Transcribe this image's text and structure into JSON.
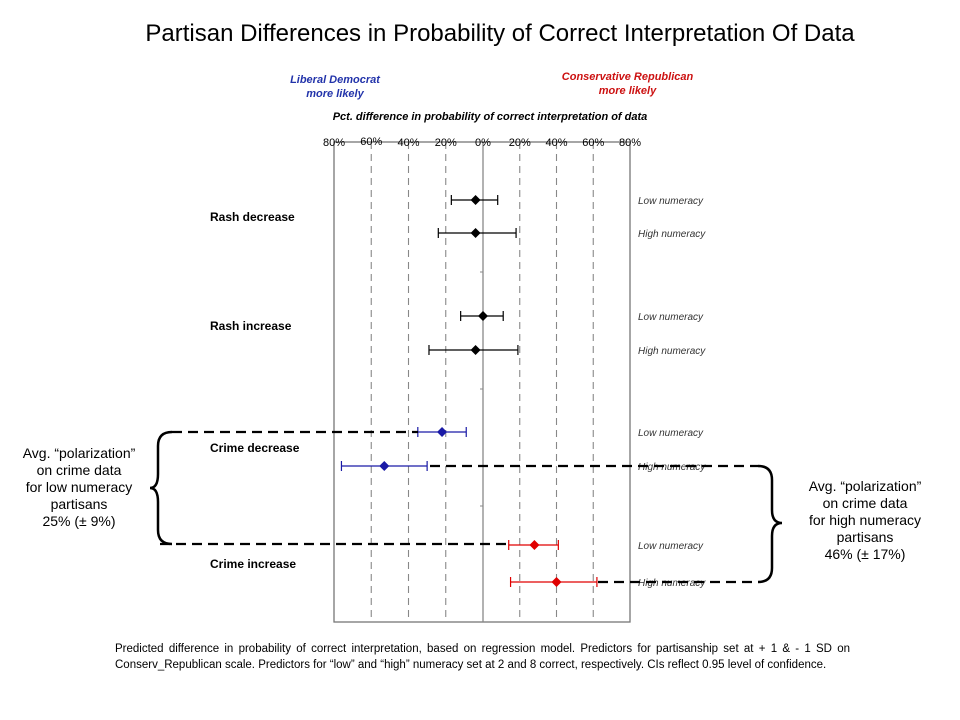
{
  "title": "Partisan Differences in Probability of Correct Interpretation Of Data",
  "direction_labels": {
    "left": [
      "Liberal Democrat",
      "more likely"
    ],
    "right": [
      "Conservative Republican",
      "more likely"
    ]
  },
  "annotations": {
    "left": [
      "Avg. “polarization”",
      "on crime data",
      "for low numeracy",
      "partisans",
      "25% (± 9%)"
    ],
    "right": [
      "Avg. “polarization”",
      "on crime data",
      "for high numeracy",
      "partisans",
      "46% (± 17%)"
    ]
  },
  "footnote": "Predicted difference in probability of correct interpretation, based on regression model. Predictors for partisanship set at + 1 & - 1 SD on Conserv_Republican scale. Predictors for “low” and “high” numeracy set at 2 and 8 correct, respectively. CIs reflect 0.95 level of confidence.",
  "colors": {
    "neutral": "#000000",
    "liberal": "#1a1aa6",
    "conservative": "#e00000"
  },
  "chart_data": {
    "type": "scatter",
    "subtype": "dot-and-whisker",
    "xlabel": "Pct. difference in probability of correct interpretation of data",
    "xlim": [
      -80,
      80
    ],
    "xticks": [
      -80,
      -60,
      -40,
      -20,
      0,
      20,
      40,
      60,
      80
    ],
    "xtick_labels": [
      "80%",
      "60%",
      "40%",
      "20%",
      "0%",
      "20%",
      "40%",
      "60%",
      "80%"
    ],
    "groups": [
      "Rash decrease",
      "Rash increase",
      "Crime decrease",
      "Crime increase"
    ],
    "rows": [
      {
        "group": "Rash decrease",
        "numeracy": "Low numeracy",
        "value": -4,
        "ci": [
          -17,
          8
        ],
        "color": "#000000"
      },
      {
        "group": "Rash decrease",
        "numeracy": "High numeracy",
        "value": -4,
        "ci": [
          -24,
          18
        ],
        "color": "#000000"
      },
      {
        "group": "Rash increase",
        "numeracy": "Low numeracy",
        "value": 0,
        "ci": [
          -12,
          11
        ],
        "color": "#000000"
      },
      {
        "group": "Rash increase",
        "numeracy": "High numeracy",
        "value": -4,
        "ci": [
          -29,
          19
        ],
        "color": "#000000"
      },
      {
        "group": "Crime decrease",
        "numeracy": "Low numeracy",
        "value": -22,
        "ci": [
          -35,
          -9
        ],
        "color": "#1a1aa6"
      },
      {
        "group": "Crime decrease",
        "numeracy": "High numeracy",
        "value": -53,
        "ci": [
          -76,
          -30
        ],
        "color": "#1a1aa6"
      },
      {
        "group": "Crime increase",
        "numeracy": "Low numeracy",
        "value": 28,
        "ci": [
          14,
          41
        ],
        "color": "#e00000"
      },
      {
        "group": "Crime increase",
        "numeracy": "High numeracy",
        "value": 40,
        "ci": [
          15,
          62
        ],
        "color": "#e00000"
      }
    ]
  }
}
